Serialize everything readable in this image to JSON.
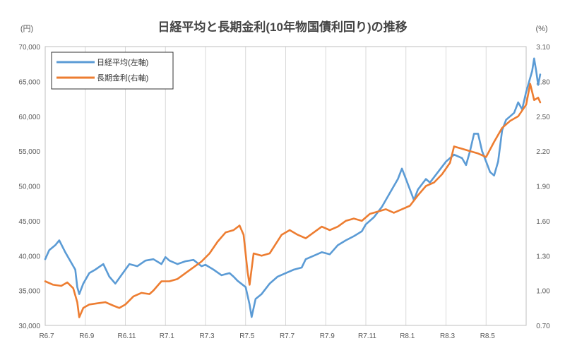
{
  "chart_data": {
    "type": "line",
    "title": "日経平均と長期金利(10年物国債利回り)の推移",
    "left_unit": "(円)",
    "right_unit": "(%)",
    "left_axis": {
      "min": 30000,
      "max": 70000,
      "ticks": [
        "30,000",
        "35,000",
        "40,000",
        "45,000",
        "50,000",
        "55,000",
        "60,000",
        "65,000",
        "70,000"
      ]
    },
    "right_axis": {
      "min": 0.7,
      "max": 3.1,
      "ticks": [
        "0.70",
        "1.00",
        "1.30",
        "1.60",
        "1.90",
        "2.20",
        "2.50",
        "2.80",
        "3.10"
      ]
    },
    "x_labels": [
      "R6.7",
      "R6.9",
      "R6.11",
      "R7.1",
      "R7.3",
      "R7.5",
      "R7.7",
      "R7.9",
      "R7.11",
      "R8.1",
      "R8.3",
      "R8.5"
    ],
    "x_range": [
      0,
      12
    ],
    "grid": "vertical",
    "legend_position": "top-left",
    "series": [
      {
        "name": "日経平均(左軸)",
        "axis": "left",
        "color": "#5B9BD5",
        "points": [
          [
            0,
            39500
          ],
          [
            0.1,
            40800
          ],
          [
            0.25,
            41500
          ],
          [
            0.35,
            42200
          ],
          [
            0.5,
            40500
          ],
          [
            0.65,
            39000
          ],
          [
            0.75,
            38000
          ],
          [
            0.8,
            35500
          ],
          [
            0.85,
            34500
          ],
          [
            0.95,
            36000
          ],
          [
            1.1,
            37500
          ],
          [
            1.25,
            38000
          ],
          [
            1.45,
            38800
          ],
          [
            1.6,
            37000
          ],
          [
            1.75,
            36000
          ],
          [
            1.9,
            37200
          ],
          [
            2.0,
            38000
          ],
          [
            2.1,
            38800
          ],
          [
            2.3,
            38500
          ],
          [
            2.5,
            39300
          ],
          [
            2.7,
            39500
          ],
          [
            2.9,
            38800
          ],
          [
            3.0,
            39800
          ],
          [
            3.1,
            39300
          ],
          [
            3.3,
            38800
          ],
          [
            3.5,
            39200
          ],
          [
            3.7,
            39400
          ],
          [
            3.9,
            38500
          ],
          [
            4.0,
            38700
          ],
          [
            4.2,
            38000
          ],
          [
            4.4,
            37200
          ],
          [
            4.6,
            37500
          ],
          [
            4.7,
            37000
          ],
          [
            4.8,
            36400
          ],
          [
            5.0,
            35500
          ],
          [
            5.1,
            33000
          ],
          [
            5.15,
            31200
          ],
          [
            5.25,
            33800
          ],
          [
            5.4,
            34500
          ],
          [
            5.6,
            36000
          ],
          [
            5.8,
            37000
          ],
          [
            6.0,
            37500
          ],
          [
            6.2,
            38000
          ],
          [
            6.4,
            38300
          ],
          [
            6.5,
            39500
          ],
          [
            6.7,
            40000
          ],
          [
            6.9,
            40500
          ],
          [
            7.1,
            40200
          ],
          [
            7.3,
            41500
          ],
          [
            7.5,
            42200
          ],
          [
            7.7,
            42800
          ],
          [
            7.9,
            43500
          ],
          [
            8.0,
            44500
          ],
          [
            8.2,
            45500
          ],
          [
            8.4,
            47000
          ],
          [
            8.6,
            49000
          ],
          [
            8.8,
            51000
          ],
          [
            8.9,
            52500
          ],
          [
            9.0,
            51000
          ],
          [
            9.1,
            49500
          ],
          [
            9.2,
            48000
          ],
          [
            9.3,
            49500
          ],
          [
            9.5,
            51000
          ],
          [
            9.6,
            50500
          ],
          [
            9.8,
            52000
          ],
          [
            10.0,
            53500
          ],
          [
            10.2,
            54500
          ],
          [
            10.4,
            54000
          ],
          [
            10.5,
            53000
          ],
          [
            10.6,
            55000
          ],
          [
            10.7,
            57500
          ],
          [
            10.8,
            57500
          ],
          [
            10.9,
            55000
          ],
          [
            11.0,
            53500
          ],
          [
            11.1,
            52000
          ],
          [
            11.2,
            51500
          ],
          [
            11.3,
            53500
          ],
          [
            11.4,
            58000
          ],
          [
            11.5,
            59500
          ],
          [
            11.6,
            60000
          ],
          [
            11.7,
            60500
          ],
          [
            11.8,
            62000
          ],
          [
            11.9,
            61000
          ],
          [
            12.0,
            63500
          ],
          [
            12.1,
            65500
          ],
          [
            12.15,
            66500
          ],
          [
            12.2,
            68300
          ],
          [
            12.25,
            66500
          ],
          [
            12.3,
            64500
          ],
          [
            12.35,
            66000
          ]
        ]
      },
      {
        "name": "長期金利(右軸)",
        "axis": "right",
        "color": "#ED7D31",
        "points": [
          [
            0,
            1.08
          ],
          [
            0.2,
            1.05
          ],
          [
            0.4,
            1.04
          ],
          [
            0.55,
            1.07
          ],
          [
            0.7,
            1.02
          ],
          [
            0.8,
            0.9
          ],
          [
            0.85,
            0.77
          ],
          [
            0.95,
            0.85
          ],
          [
            1.1,
            0.88
          ],
          [
            1.3,
            0.89
          ],
          [
            1.5,
            0.9
          ],
          [
            1.7,
            0.87
          ],
          [
            1.85,
            0.85
          ],
          [
            2.0,
            0.88
          ],
          [
            2.2,
            0.95
          ],
          [
            2.4,
            0.98
          ],
          [
            2.6,
            0.97
          ],
          [
            2.7,
            1.0
          ],
          [
            2.8,
            1.04
          ],
          [
            2.9,
            1.08
          ],
          [
            3.1,
            1.08
          ],
          [
            3.3,
            1.1
          ],
          [
            3.5,
            1.15
          ],
          [
            3.7,
            1.2
          ],
          [
            3.9,
            1.25
          ],
          [
            4.1,
            1.32
          ],
          [
            4.3,
            1.42
          ],
          [
            4.5,
            1.5
          ],
          [
            4.7,
            1.52
          ],
          [
            4.85,
            1.56
          ],
          [
            4.95,
            1.48
          ],
          [
            5.05,
            1.16
          ],
          [
            5.1,
            1.05
          ],
          [
            5.2,
            1.32
          ],
          [
            5.4,
            1.3
          ],
          [
            5.6,
            1.32
          ],
          [
            5.75,
            1.4
          ],
          [
            5.9,
            1.48
          ],
          [
            6.1,
            1.52
          ],
          [
            6.3,
            1.48
          ],
          [
            6.5,
            1.45
          ],
          [
            6.7,
            1.5
          ],
          [
            6.9,
            1.55
          ],
          [
            7.1,
            1.52
          ],
          [
            7.3,
            1.55
          ],
          [
            7.5,
            1.6
          ],
          [
            7.7,
            1.62
          ],
          [
            7.9,
            1.6
          ],
          [
            8.1,
            1.66
          ],
          [
            8.3,
            1.68
          ],
          [
            8.5,
            1.7
          ],
          [
            8.7,
            1.67
          ],
          [
            8.9,
            1.7
          ],
          [
            9.1,
            1.73
          ],
          [
            9.3,
            1.82
          ],
          [
            9.5,
            1.9
          ],
          [
            9.7,
            1.93
          ],
          [
            9.9,
            2.0
          ],
          [
            10.1,
            2.1
          ],
          [
            10.2,
            2.24
          ],
          [
            10.4,
            2.22
          ],
          [
            10.6,
            2.2
          ],
          [
            10.8,
            2.18
          ],
          [
            11.0,
            2.15
          ],
          [
            11.2,
            2.28
          ],
          [
            11.4,
            2.4
          ],
          [
            11.6,
            2.46
          ],
          [
            11.8,
            2.5
          ],
          [
            12.0,
            2.6
          ],
          [
            12.1,
            2.78
          ],
          [
            12.2,
            2.64
          ],
          [
            12.3,
            2.66
          ],
          [
            12.35,
            2.62
          ]
        ]
      }
    ]
  }
}
